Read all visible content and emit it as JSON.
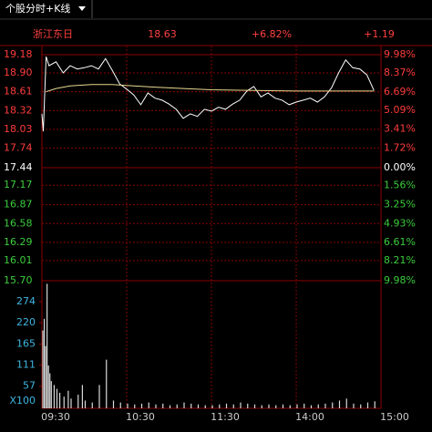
{
  "toolbar": {
    "label": "个股分时+K线"
  },
  "quote": {
    "name": "浙江东日",
    "price": "18.63",
    "change_pct": "+6.82%",
    "change": "+1.19"
  },
  "chart_data": [
    {
      "type": "line",
      "grid": true,
      "xlim": [
        0,
        240
      ],
      "xticks": [
        {
          "value": 0,
          "label": "09:30"
        },
        {
          "value": 60,
          "label": "10:30"
        },
        {
          "value": 120,
          "label": "11:30"
        },
        {
          "value": 180,
          "label": "14:00"
        },
        {
          "value": 240,
          "label": "15:00"
        }
      ],
      "ylim": [
        {
          "value": 15.7,
          "label": "15.70"
        },
        19.18
      ],
      "yticks": [
        19.18,
        {
          "value": 18.9,
          "label": "18.90"
        },
        18.61,
        18.32,
        18.03,
        17.74,
        17.44,
        17.17,
        16.87,
        16.58,
        16.29,
        16.01,
        {
          "value": 15.7,
          "label": "15.70"
        }
      ],
      "y2lim": [
        -9.98,
        9.98
      ],
      "y2ticks": [
        {
          "value": 9.98,
          "label": "9.98%"
        },
        {
          "value": 8.37,
          "label": "8.37%"
        },
        {
          "value": 6.69,
          "label": "6.69%"
        },
        {
          "value": 5.09,
          "label": "5.09%"
        },
        {
          "value": 3.41,
          "label": "3.41%"
        },
        {
          "value": 1.72,
          "label": "1.72%"
        },
        {
          "value": 0,
          "label": "0.00%"
        },
        {
          "value": -1.56,
          "label": "1.56%"
        },
        {
          "value": -3.25,
          "label": "3.25%"
        },
        {
          "value": -4.93,
          "label": "4.93%"
        },
        {
          "value": -6.61,
          "label": "6.61%"
        },
        {
          "value": -8.21,
          "label": "8.21%"
        },
        {
          "value": -9.98,
          "label": "9.98%"
        }
      ],
      "series": [
        {
          "color": "#ffffff",
          "x": [
            0,
            1,
            3,
            5,
            10,
            15,
            20,
            25,
            30,
            35,
            40,
            45,
            50,
            55,
            60,
            65,
            70,
            75,
            80,
            85,
            90,
            95,
            100,
            105,
            110,
            115,
            120,
            125,
            130,
            135,
            140,
            145,
            150,
            155,
            160,
            165,
            170,
            175,
            180,
            185,
            190,
            195,
            200,
            205,
            210,
            215,
            220,
            225,
            230,
            235
          ],
          "values": [
            18.27,
            18.0,
            19.15,
            19.01,
            19.07,
            18.9,
            19.01,
            18.96,
            18.98,
            19.01,
            18.96,
            19.12,
            18.93,
            18.73,
            18.65,
            18.56,
            18.41,
            18.59,
            18.51,
            18.48,
            18.42,
            18.34,
            18.2,
            18.27,
            18.23,
            18.34,
            18.31,
            18.37,
            18.34,
            18.42,
            18.48,
            18.62,
            18.69,
            18.53,
            18.59,
            18.51,
            18.48,
            18.41,
            18.45,
            18.48,
            18.51,
            18.45,
            18.53,
            18.67,
            18.9,
            19.1,
            18.98,
            18.96,
            18.87,
            18.63
          ]
        },
        {
          "color": "#e8d890",
          "x": [
            3,
            10,
            20,
            35,
            50,
            65,
            80,
            100,
            120,
            150,
            180,
            210,
            235
          ],
          "values": [
            18.61,
            18.66,
            18.7,
            18.72,
            18.72,
            18.7,
            18.68,
            18.66,
            18.64,
            18.63,
            18.62,
            18.62,
            18.62
          ]
        }
      ]
    },
    {
      "type": "bar",
      "unit": "X100",
      "xlim": [
        0,
        240
      ],
      "ylim": [
        0,
        328
      ],
      "yticks": [
        57,
        111,
        165,
        220,
        274
      ],
      "series": [
        {
          "color": "#d8d8d8",
          "x": [
            0,
            1,
            2,
            3,
            4,
            5,
            6,
            8,
            10,
            12,
            15,
            18,
            20,
            25,
            28,
            30,
            35,
            40,
            45,
            50,
            55,
            60,
            65,
            70,
            75,
            80,
            85,
            90,
            95,
            100,
            105,
            110,
            115,
            120,
            125,
            130,
            135,
            140,
            145,
            150,
            155,
            160,
            165,
            170,
            175,
            180,
            185,
            190,
            195,
            200,
            205,
            210,
            215,
            220,
            225,
            230,
            235
          ],
          "values": [
            200,
            230,
            160,
            320,
            110,
            90,
            70,
            60,
            50,
            40,
            30,
            45,
            25,
            35,
            60,
            20,
            15,
            60,
            125,
            20,
            15,
            12,
            10,
            12,
            15,
            10,
            12,
            8,
            10,
            15,
            12,
            10,
            8,
            8,
            10,
            12,
            10,
            15,
            12,
            10,
            8,
            10,
            8,
            10,
            8,
            10,
            12,
            8,
            10,
            12,
            15,
            20,
            25,
            12,
            10,
            15,
            18
          ]
        }
      ]
    }
  ]
}
